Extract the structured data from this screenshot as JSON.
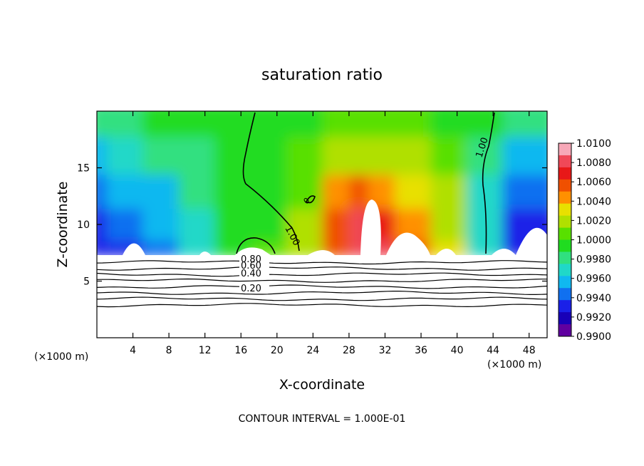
{
  "chart_data": {
    "type": "heatmap",
    "title": "saturation ratio",
    "xlabel": "X-coordinate",
    "ylabel": "Z-coordinate",
    "x_unit_label": "(×1000 m)",
    "footer": "CONTOUR INTERVAL = 1.000E-01",
    "xlim": [
      0,
      50
    ],
    "ylim": [
      0,
      20
    ],
    "x_ticks": [
      4,
      8,
      12,
      16,
      20,
      24,
      28,
      32,
      36,
      40,
      44,
      48
    ],
    "y_ticks": [
      5,
      10,
      15
    ],
    "colorbar": {
      "min": 0.99,
      "max": 1.01,
      "labels": [
        "1.0100",
        "1.0080",
        "1.0060",
        "1.0040",
        "1.0020",
        "1.0000",
        "0.9980",
        "0.9960",
        "0.9940",
        "0.9920",
        "0.9900"
      ],
      "colors": [
        "#f7a8b8",
        "#f04858",
        "#e81818",
        "#f05000",
        "#ff9000",
        "#e8e000",
        "#b0e000",
        "#58e000",
        "#20dc20",
        "#30e080",
        "#20d8c8",
        "#10b8f0",
        "#1070f0",
        "#1a20e8",
        "#1800b8",
        "#6000a0"
      ]
    },
    "field": {
      "x": [
        0,
        4,
        8,
        12,
        16,
        20,
        24,
        28,
        30,
        32,
        36,
        40,
        44,
        48,
        50
      ],
      "z": [
        7.3,
        10,
        13,
        16,
        19.7
      ],
      "values": [
        [
          0.993,
          0.9935,
          0.995,
          0.9965,
          0.9995,
          1.0003,
          1.0025,
          1.006,
          1.008,
          1.0075,
          1.006,
          1.003,
          0.997,
          0.9935,
          0.993
        ],
        [
          0.9935,
          0.9945,
          0.9955,
          0.9965,
          0.999,
          1.0,
          1.0018,
          1.0055,
          1.0085,
          1.007,
          1.005,
          1.002,
          0.9965,
          0.9935,
          0.9935
        ],
        [
          0.9945,
          0.9955,
          0.996,
          0.9975,
          0.9995,
          1.0,
          1.001,
          1.004,
          1.0055,
          1.0045,
          1.003,
          1.0015,
          0.997,
          0.9945,
          0.995
        ],
        [
          0.9955,
          0.9965,
          0.9975,
          0.9985,
          0.9998,
          1.0,
          1.0005,
          1.0015,
          1.0022,
          1.002,
          1.0015,
          1.0008,
          0.9985,
          0.996,
          0.996
        ],
        [
          0.9975,
          0.9985,
          0.999,
          0.9995,
          0.9999,
          1.0,
          1.0,
          1.0002,
          1.0004,
          1.0004,
          1.0002,
          1.0,
          0.9995,
          0.9985,
          0.998
        ]
      ]
    },
    "contour_labels": [
      "1.00",
      "1.00",
      "0",
      "0.80",
      "0.60",
      "0.40",
      "0.20"
    ],
    "lower_contour_levels": [
      0.2,
      0.3,
      0.4,
      0.5,
      0.6,
      0.7,
      0.8,
      0.9
    ]
  }
}
